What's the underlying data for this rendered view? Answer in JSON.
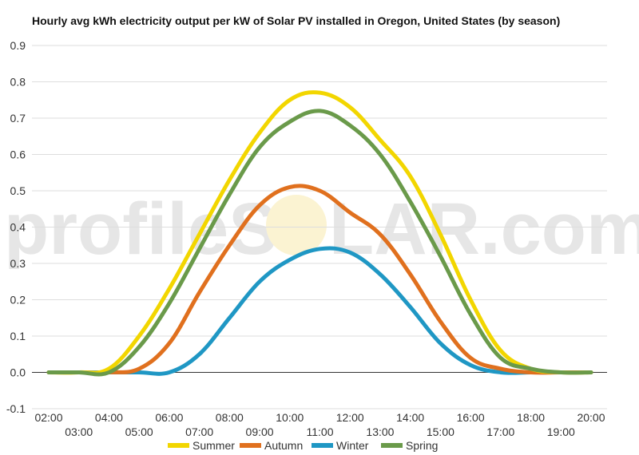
{
  "chart_data": {
    "type": "line",
    "title": "Hourly avg kWh electricity output per kW of Solar PV installed in Oregon, United States (by season)",
    "watermark": {
      "left": "profileS",
      "right": "LAR.com"
    },
    "x": [
      "02:00",
      "03:00",
      "04:00",
      "05:00",
      "06:00",
      "07:00",
      "08:00",
      "09:00",
      "10:00",
      "11:00",
      "12:00",
      "13:00",
      "14:00",
      "15:00",
      "16:00",
      "17:00",
      "18:00",
      "19:00",
      "20:00"
    ],
    "ylim": [
      -0.1,
      0.9
    ],
    "yticks": [
      "-0.1",
      "0.0",
      "0.1",
      "0.2",
      "0.3",
      "0.4",
      "0.5",
      "0.6",
      "0.7",
      "0.8",
      "0.9"
    ],
    "grid": true,
    "legend_position": "bottom",
    "series": [
      {
        "name": "Summer",
        "color": "#f2d600",
        "values": [
          0,
          0,
          0.01,
          0.1,
          0.23,
          0.38,
          0.53,
          0.66,
          0.75,
          0.77,
          0.73,
          0.64,
          0.54,
          0.38,
          0.2,
          0.06,
          0.01,
          0,
          0
        ]
      },
      {
        "name": "Autumn",
        "color": "#e0701e",
        "values": [
          0,
          0,
          0,
          0.01,
          0.08,
          0.22,
          0.35,
          0.46,
          0.51,
          0.5,
          0.44,
          0.38,
          0.27,
          0.14,
          0.04,
          0.01,
          0,
          0,
          0
        ]
      },
      {
        "name": "Winter",
        "color": "#1f97c4",
        "values": [
          0,
          0,
          0,
          0,
          0,
          0.05,
          0.15,
          0.25,
          0.31,
          0.34,
          0.33,
          0.27,
          0.18,
          0.08,
          0.02,
          0,
          0,
          0,
          0
        ]
      },
      {
        "name": "Spring",
        "color": "#6a9a4a",
        "values": [
          0,
          0,
          0,
          0.07,
          0.19,
          0.34,
          0.49,
          0.62,
          0.69,
          0.72,
          0.68,
          0.6,
          0.47,
          0.32,
          0.16,
          0.04,
          0.01,
          0,
          0
        ]
      }
    ]
  }
}
